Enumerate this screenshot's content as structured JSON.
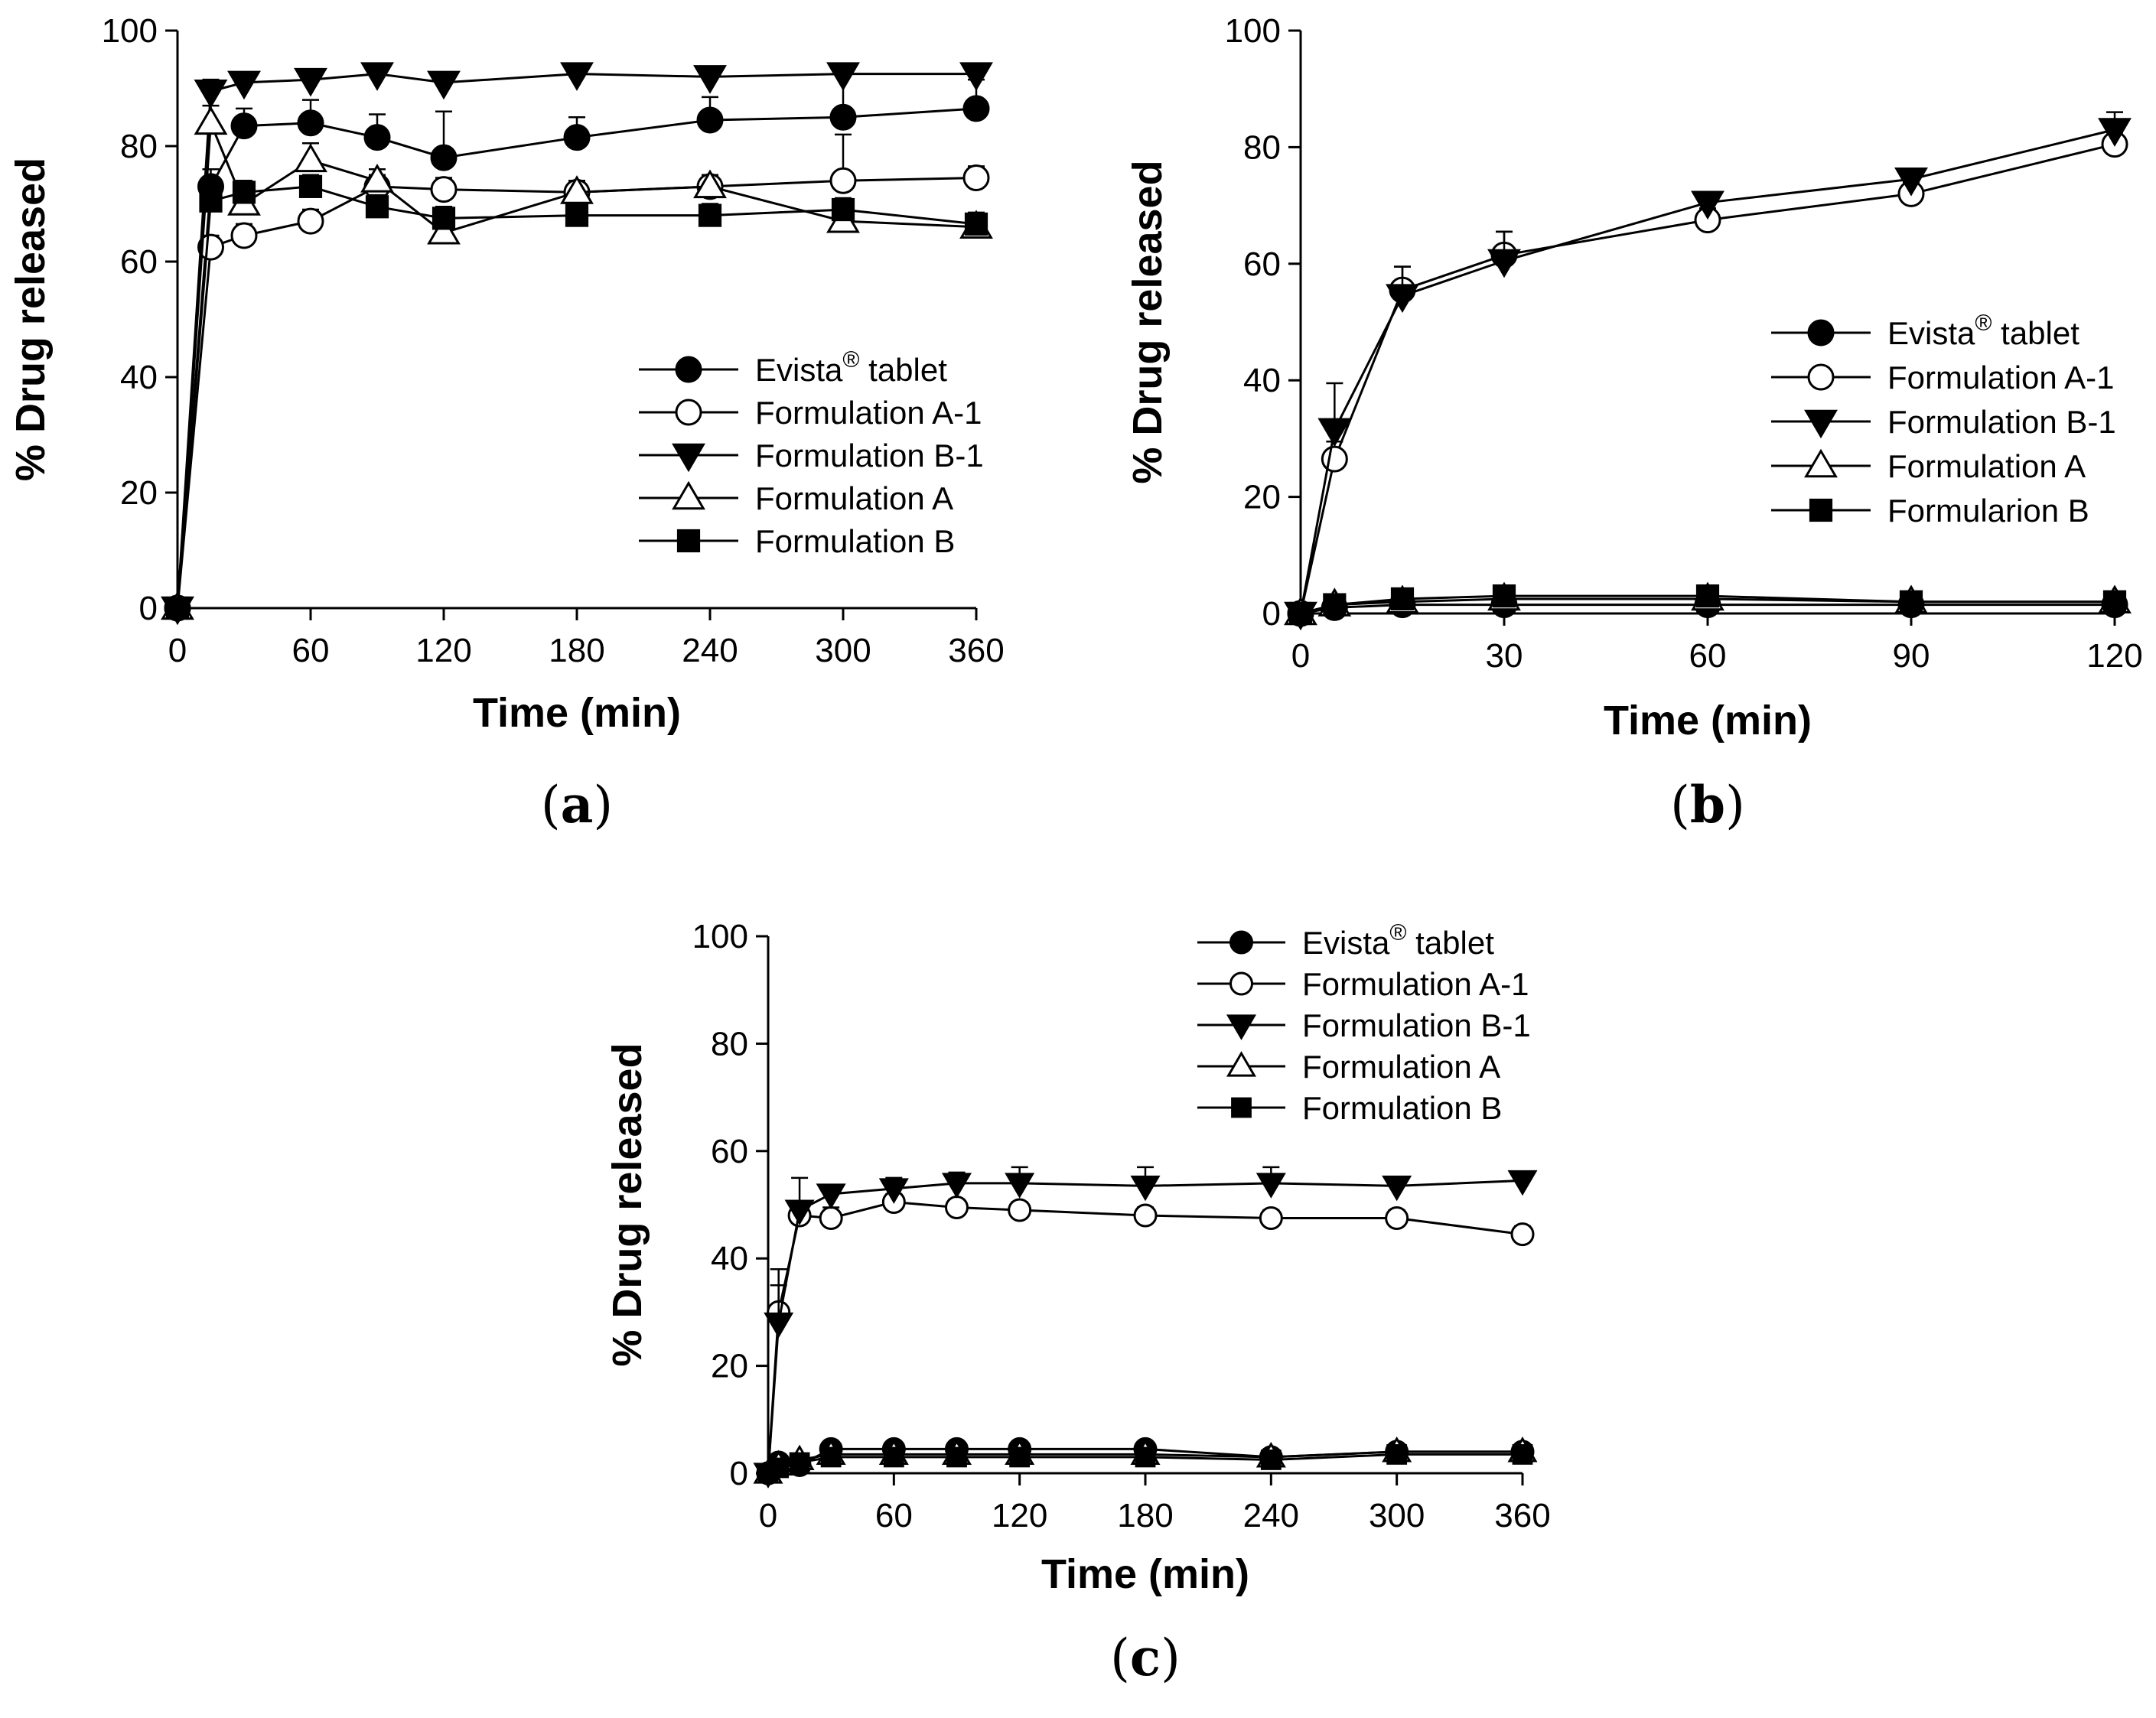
{
  "figure": {
    "panels": [
      "a",
      "b",
      "c"
    ]
  },
  "chart_data": [
    {
      "panel": "a",
      "type": "line",
      "xlabel": "Time (min)",
      "ylabel": "% Drug released",
      "xlim": [
        0,
        360
      ],
      "ylim": [
        0,
        100
      ],
      "xticks": [
        0,
        60,
        120,
        180,
        240,
        300,
        360
      ],
      "yticks": [
        0,
        20,
        40,
        60,
        80,
        100
      ],
      "legend_position": "center-right",
      "series": [
        {
          "name": "Evista",
          "superscript": "®",
          "suffix": " tablet",
          "marker": "circle",
          "filled": true,
          "x": [
            0,
            15,
            30,
            60,
            90,
            120,
            180,
            240,
            300,
            360
          ],
          "values": [
            0,
            73,
            83.5,
            84,
            81.5,
            78,
            81.5,
            84.5,
            85,
            86.5
          ],
          "errors": [
            0,
            3,
            3,
            4,
            4,
            8,
            3.5,
            4,
            8,
            5
          ]
        },
        {
          "name": "Formulation A-1",
          "marker": "circle",
          "filled": false,
          "x": [
            0,
            15,
            30,
            60,
            90,
            120,
            180,
            240,
            300,
            360
          ],
          "values": [
            0,
            62.5,
            64.5,
            67,
            73,
            72.5,
            72,
            73,
            74,
            74.5
          ],
          "errors": [
            0,
            2,
            2,
            2,
            2,
            2,
            2,
            2,
            8,
            2
          ]
        },
        {
          "name": "Formulation B-1",
          "marker": "triangle-down",
          "filled": true,
          "x": [
            0,
            15,
            30,
            60,
            90,
            120,
            180,
            240,
            300,
            360
          ],
          "values": [
            0,
            89.5,
            91,
            91.5,
            92.5,
            91,
            92.5,
            92,
            92.5,
            92.5
          ],
          "errors": [
            0,
            2,
            1,
            1,
            1,
            1,
            1,
            1,
            1,
            1
          ]
        },
        {
          "name": "Formulation A",
          "marker": "triangle-up",
          "filled": false,
          "x": [
            0,
            15,
            30,
            60,
            90,
            120,
            180,
            240,
            300,
            360
          ],
          "values": [
            0,
            84,
            70,
            77.5,
            74,
            65,
            72,
            73,
            67,
            66
          ],
          "errors": [
            0,
            3,
            2,
            3,
            2,
            3,
            2,
            2,
            2,
            2
          ]
        },
        {
          "name": "Formulation B",
          "marker": "square",
          "filled": true,
          "x": [
            0,
            15,
            30,
            60,
            90,
            120,
            180,
            240,
            300,
            360
          ],
          "values": [
            0,
            70.5,
            72,
            73,
            69.5,
            67.5,
            68,
            68,
            69,
            66.5
          ],
          "errors": [
            0,
            2,
            2,
            2,
            2,
            2,
            2,
            2,
            2,
            2
          ]
        }
      ]
    },
    {
      "panel": "b",
      "type": "line",
      "xlabel": "Time (min)",
      "ylabel": "% Drug released",
      "xlim": [
        0,
        120
      ],
      "ylim": [
        0,
        100
      ],
      "xticks": [
        0,
        30,
        60,
        90,
        120
      ],
      "yticks": [
        0,
        20,
        40,
        60,
        80,
        100
      ],
      "legend_position": "center-right",
      "series": [
        {
          "name": "Evista",
          "superscript": "®",
          "suffix": " tablet",
          "marker": "circle",
          "filled": true,
          "x": [
            0,
            5,
            15,
            30,
            60,
            90,
            120
          ],
          "values": [
            0,
            1,
            1.5,
            1.5,
            1.5,
            1.5,
            1.5
          ],
          "errors": [
            0,
            0.5,
            0.5,
            0.5,
            0.5,
            0.5,
            0.5
          ]
        },
        {
          "name": "Formulation A-1",
          "marker": "circle",
          "filled": false,
          "x": [
            0,
            5,
            15,
            30,
            60,
            90,
            120
          ],
          "values": [
            0,
            26.5,
            55.5,
            61.5,
            67.5,
            72,
            80.5
          ],
          "errors": [
            0,
            3,
            4,
            4,
            2,
            2,
            2
          ]
        },
        {
          "name": "Formulation B-1",
          "marker": "triangle-down",
          "filled": true,
          "x": [
            0,
            5,
            15,
            30,
            60,
            90,
            120
          ],
          "values": [
            0,
            31.5,
            54.5,
            60.5,
            70.5,
            74.5,
            83
          ],
          "errors": [
            0,
            8,
            5,
            5,
            1.5,
            1.5,
            3
          ]
        },
        {
          "name": "Formulation A",
          "marker": "triangle-up",
          "filled": false,
          "x": [
            0,
            5,
            15,
            30,
            60,
            90,
            120
          ],
          "values": [
            0,
            1.5,
            2,
            2.5,
            2.5,
            2,
            2
          ],
          "errors": [
            0,
            0.5,
            0.5,
            0.5,
            0.5,
            0.5,
            0.5
          ]
        },
        {
          "name": "Formularion B",
          "marker": "square",
          "filled": true,
          "x": [
            0,
            5,
            15,
            30,
            60,
            90,
            120
          ],
          "values": [
            0,
            1.5,
            2.5,
            3,
            3,
            2,
            2
          ],
          "errors": [
            0,
            0.5,
            0.5,
            0.5,
            0.5,
            0.5,
            0.5
          ]
        }
      ]
    },
    {
      "panel": "c",
      "type": "line",
      "xlabel": "Time (min)",
      "ylabel": "% Drug released",
      "xlim": [
        0,
        360
      ],
      "ylim": [
        0,
        100
      ],
      "xticks": [
        0,
        60,
        120,
        180,
        240,
        300,
        360
      ],
      "yticks": [
        0,
        20,
        40,
        60,
        80,
        100
      ],
      "legend_position": "top-right",
      "series": [
        {
          "name": "Evista",
          "superscript": "®",
          "suffix": " tablet",
          "marker": "circle",
          "filled": true,
          "x": [
            0,
            5,
            15,
            30,
            60,
            90,
            120,
            180,
            240,
            300,
            360
          ],
          "values": [
            0,
            2,
            1.5,
            4.5,
            4.5,
            4.5,
            4.5,
            4.5,
            3,
            4,
            4
          ],
          "errors": [
            0,
            0.5,
            0.5,
            0.5,
            0.5,
            0.5,
            0.5,
            0.5,
            0.5,
            0.5,
            0.5
          ]
        },
        {
          "name": "Formulation A-1",
          "marker": "circle",
          "filled": false,
          "x": [
            0,
            5,
            15,
            30,
            60,
            90,
            120,
            180,
            240,
            300,
            360
          ],
          "values": [
            0,
            30,
            48,
            47.5,
            50.5,
            49.5,
            49,
            48,
            47.5,
            47.5,
            44.5
          ],
          "errors": [
            0,
            8,
            2,
            2,
            1.5,
            1.5,
            1.5,
            1.5,
            1.5,
            1.5,
            1.5
          ]
        },
        {
          "name": "Formulation B-1",
          "marker": "triangle-down",
          "filled": true,
          "x": [
            0,
            5,
            15,
            30,
            60,
            90,
            120,
            180,
            240,
            300,
            360
          ],
          "values": [
            0,
            28,
            49,
            52,
            53,
            54,
            54,
            53.5,
            54,
            53.5,
            54.5
          ],
          "errors": [
            0,
            7,
            6,
            1,
            2,
            2,
            3,
            3.5,
            3,
            0.5,
            1
          ]
        },
        {
          "name": "Formulation A",
          "marker": "triangle-up",
          "filled": false,
          "x": [
            0,
            5,
            15,
            30,
            60,
            90,
            120,
            180,
            240,
            300,
            360
          ],
          "values": [
            0,
            1.5,
            2.5,
            3.5,
            3.5,
            3.5,
            3.5,
            3.5,
            3,
            4,
            4
          ],
          "errors": [
            0,
            0.5,
            0.5,
            0.5,
            0.5,
            0.5,
            0.5,
            0.5,
            0.5,
            0.5,
            0.5
          ]
        },
        {
          "name": "Formulation B",
          "marker": "square",
          "filled": true,
          "x": [
            0,
            5,
            15,
            30,
            60,
            90,
            120,
            180,
            240,
            300,
            360
          ],
          "values": [
            0,
            1,
            2,
            3,
            3,
            3,
            3,
            3,
            2.5,
            3.5,
            3.5
          ],
          "errors": [
            0,
            0.5,
            0.5,
            0.5,
            0.5,
            0.5,
            0.5,
            0.5,
            0.5,
            0.5,
            0.5
          ]
        }
      ]
    }
  ]
}
